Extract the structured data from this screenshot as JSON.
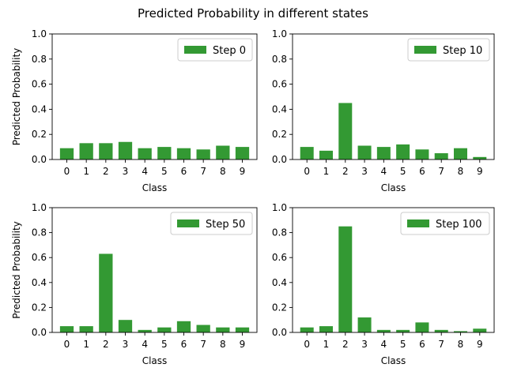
{
  "figure": {
    "suptitle": "Predicted Probability in different states"
  },
  "chart_data": [
    {
      "type": "bar",
      "title": "",
      "categories": [
        "0",
        "1",
        "2",
        "3",
        "4",
        "5",
        "6",
        "7",
        "8",
        "9"
      ],
      "series": [
        {
          "name": "Step 0",
          "values": [
            0.09,
            0.13,
            0.13,
            0.14,
            0.09,
            0.1,
            0.09,
            0.08,
            0.11,
            0.1
          ]
        }
      ],
      "xlabel": "Class",
      "ylabel": "Predicted Probability",
      "ylim": [
        0,
        1.0
      ],
      "yticks": [
        "0.0",
        "0.2",
        "0.4",
        "0.6",
        "0.8",
        "1.0"
      ],
      "bar_color": "#339933",
      "legend_position": "upper-right",
      "grid": false
    },
    {
      "type": "bar",
      "title": "",
      "categories": [
        "0",
        "1",
        "2",
        "3",
        "4",
        "5",
        "6",
        "7",
        "8",
        "9"
      ],
      "series": [
        {
          "name": "Step 10",
          "values": [
            0.1,
            0.07,
            0.45,
            0.11,
            0.1,
            0.12,
            0.08,
            0.05,
            0.09,
            0.02
          ]
        }
      ],
      "xlabel": "Class",
      "ylabel": "",
      "ylim": [
        0,
        1.0
      ],
      "yticks": [
        "0.0",
        "0.2",
        "0.4",
        "0.6",
        "0.8",
        "1.0"
      ],
      "bar_color": "#339933",
      "legend_position": "upper-right",
      "grid": false
    },
    {
      "type": "bar",
      "title": "",
      "categories": [
        "0",
        "1",
        "2",
        "3",
        "4",
        "5",
        "6",
        "7",
        "8",
        "9"
      ],
      "series": [
        {
          "name": "Step 50",
          "values": [
            0.05,
            0.05,
            0.63,
            0.1,
            0.02,
            0.04,
            0.09,
            0.06,
            0.04,
            0.04
          ]
        }
      ],
      "xlabel": "Class",
      "ylabel": "Predicted Probability",
      "ylim": [
        0,
        1.0
      ],
      "yticks": [
        "0.0",
        "0.2",
        "0.4",
        "0.6",
        "0.8",
        "1.0"
      ],
      "bar_color": "#339933",
      "legend_position": "upper-right",
      "grid": false
    },
    {
      "type": "bar",
      "title": "",
      "categories": [
        "0",
        "1",
        "2",
        "3",
        "4",
        "5",
        "6",
        "7",
        "8",
        "9"
      ],
      "series": [
        {
          "name": "Step 100",
          "values": [
            0.04,
            0.05,
            0.85,
            0.12,
            0.02,
            0.02,
            0.08,
            0.02,
            0.01,
            0.03
          ]
        }
      ],
      "xlabel": "Class",
      "ylabel": "",
      "ylim": [
        0,
        1.0
      ],
      "yticks": [
        "0.0",
        "0.2",
        "0.4",
        "0.6",
        "0.8",
        "1.0"
      ],
      "bar_color": "#339933",
      "legend_position": "upper-right",
      "grid": false
    }
  ]
}
